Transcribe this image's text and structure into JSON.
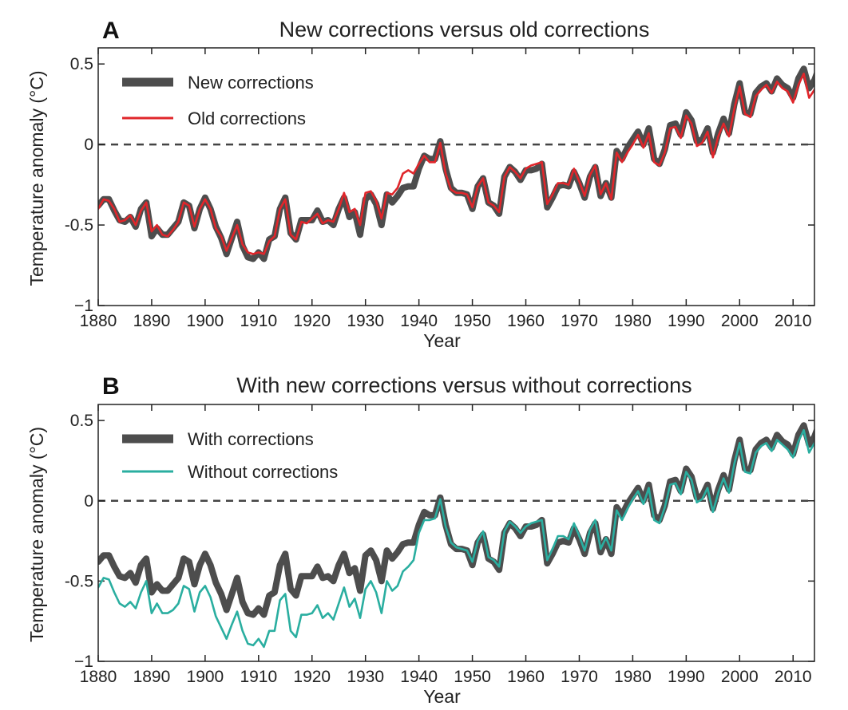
{
  "chart_data": [
    {
      "type": "line",
      "panel": "A",
      "title": "New corrections versus old corrections",
      "xlabel": "Year",
      "ylabel": "Temperature anomaly (°C)",
      "xlim": [
        1880,
        2014
      ],
      "ylim": [
        -1,
        0.6
      ],
      "xticks": [
        1880,
        1890,
        1900,
        1910,
        1920,
        1930,
        1940,
        1950,
        1960,
        1970,
        1980,
        1990,
        2000,
        2010
      ],
      "yticks": [
        -1,
        -0.5,
        0,
        0.5
      ],
      "ytick_labels": [
        "−1",
        "-0.5",
        "0",
        "0.5"
      ],
      "zero_line": true,
      "legend_position": "top-left",
      "x_start": 1880,
      "x_step": 1,
      "series": [
        {
          "name": "New corrections",
          "color": "#4d4d4d",
          "style": "thick",
          "values": [
            -0.38,
            -0.34,
            -0.34,
            -0.41,
            -0.47,
            -0.48,
            -0.45,
            -0.51,
            -0.4,
            -0.36,
            -0.57,
            -0.52,
            -0.56,
            -0.56,
            -0.52,
            -0.48,
            -0.36,
            -0.38,
            -0.52,
            -0.4,
            -0.33,
            -0.4,
            -0.51,
            -0.58,
            -0.68,
            -0.58,
            -0.48,
            -0.63,
            -0.7,
            -0.71,
            -0.67,
            -0.71,
            -0.59,
            -0.57,
            -0.4,
            -0.33,
            -0.55,
            -0.59,
            -0.47,
            -0.47,
            -0.47,
            -0.41,
            -0.48,
            -0.47,
            -0.5,
            -0.4,
            -0.33,
            -0.45,
            -0.42,
            -0.56,
            -0.34,
            -0.31,
            -0.37,
            -0.5,
            -0.31,
            -0.36,
            -0.32,
            -0.27,
            -0.26,
            -0.26,
            -0.15,
            -0.07,
            -0.09,
            -0.09,
            0.02,
            -0.15,
            -0.27,
            -0.3,
            -0.3,
            -0.31,
            -0.4,
            -0.26,
            -0.21,
            -0.36,
            -0.38,
            -0.43,
            -0.2,
            -0.14,
            -0.17,
            -0.22,
            -0.16,
            -0.16,
            -0.15,
            -0.12,
            -0.39,
            -0.33,
            -0.26,
            -0.25,
            -0.26,
            -0.17,
            -0.24,
            -0.33,
            -0.2,
            -0.14,
            -0.32,
            -0.24,
            -0.33,
            -0.04,
            -0.09,
            -0.02,
            0.03,
            0.08,
            0.0,
            0.1,
            -0.09,
            -0.12,
            -0.03,
            0.12,
            0.13,
            0.06,
            0.2,
            0.15,
            0.02,
            0.03,
            0.1,
            -0.05,
            0.07,
            0.16,
            0.07,
            0.25,
            0.38,
            0.2,
            0.19,
            0.32,
            0.36,
            0.38,
            0.33,
            0.41,
            0.37,
            0.35,
            0.29,
            0.41,
            0.47,
            0.35,
            0.4,
            0.49
          ]
        },
        {
          "name": "Old corrections",
          "color": "#e0262b",
          "style": "thin",
          "values": [
            -0.4,
            -0.34,
            -0.35,
            -0.4,
            -0.48,
            -0.47,
            -0.44,
            -0.5,
            -0.41,
            -0.36,
            -0.54,
            -0.5,
            -0.56,
            -0.57,
            -0.53,
            -0.48,
            -0.36,
            -0.38,
            -0.51,
            -0.4,
            -0.34,
            -0.4,
            -0.52,
            -0.57,
            -0.66,
            -0.58,
            -0.5,
            -0.62,
            -0.67,
            -0.68,
            -0.67,
            -0.68,
            -0.6,
            -0.57,
            -0.4,
            -0.34,
            -0.56,
            -0.59,
            -0.48,
            -0.49,
            -0.46,
            -0.43,
            -0.49,
            -0.47,
            -0.48,
            -0.4,
            -0.3,
            -0.42,
            -0.4,
            -0.5,
            -0.3,
            -0.29,
            -0.35,
            -0.46,
            -0.3,
            -0.31,
            -0.27,
            -0.18,
            -0.16,
            -0.18,
            -0.12,
            -0.07,
            -0.11,
            -0.11,
            0.01,
            -0.18,
            -0.28,
            -0.3,
            -0.3,
            -0.31,
            -0.39,
            -0.26,
            -0.21,
            -0.36,
            -0.38,
            -0.42,
            -0.2,
            -0.14,
            -0.17,
            -0.21,
            -0.15,
            -0.13,
            -0.12,
            -0.11,
            -0.37,
            -0.31,
            -0.24,
            -0.24,
            -0.25,
            -0.15,
            -0.23,
            -0.32,
            -0.19,
            -0.13,
            -0.31,
            -0.24,
            -0.34,
            -0.05,
            -0.11,
            -0.05,
            0.0,
            0.06,
            -0.02,
            0.07,
            -0.11,
            -0.13,
            -0.05,
            0.1,
            0.11,
            0.04,
            0.18,
            0.13,
            -0.01,
            0.01,
            0.08,
            -0.08,
            0.05,
            0.13,
            0.05,
            0.22,
            0.36,
            0.19,
            0.17,
            0.3,
            0.34,
            0.37,
            0.32,
            0.39,
            0.35,
            0.33,
            0.26,
            0.37,
            0.44,
            0.29,
            0.34,
            0.42
          ]
        }
      ]
    },
    {
      "type": "line",
      "panel": "B",
      "title": "With new corrections versus without corrections",
      "xlabel": "Year",
      "ylabel": "Temperature anomaly (°C)",
      "xlim": [
        1880,
        2014
      ],
      "ylim": [
        -1,
        0.6
      ],
      "xticks": [
        1880,
        1890,
        1900,
        1910,
        1920,
        1930,
        1940,
        1950,
        1960,
        1970,
        1980,
        1990,
        2000,
        2010
      ],
      "yticks": [
        -1,
        -0.5,
        0,
        0.5
      ],
      "ytick_labels": [
        "−1",
        "-0.5",
        "0",
        "0.5"
      ],
      "zero_line": true,
      "legend_position": "top-left",
      "x_start": 1880,
      "x_step": 1,
      "series": [
        {
          "name": "With corrections",
          "color": "#4d4d4d",
          "style": "thick",
          "values": [
            -0.38,
            -0.34,
            -0.34,
            -0.41,
            -0.47,
            -0.48,
            -0.45,
            -0.51,
            -0.4,
            -0.36,
            -0.57,
            -0.52,
            -0.56,
            -0.56,
            -0.52,
            -0.48,
            -0.36,
            -0.38,
            -0.52,
            -0.4,
            -0.33,
            -0.4,
            -0.51,
            -0.58,
            -0.68,
            -0.58,
            -0.48,
            -0.63,
            -0.7,
            -0.71,
            -0.67,
            -0.71,
            -0.59,
            -0.57,
            -0.4,
            -0.33,
            -0.55,
            -0.59,
            -0.47,
            -0.47,
            -0.47,
            -0.41,
            -0.48,
            -0.47,
            -0.5,
            -0.4,
            -0.33,
            -0.45,
            -0.42,
            -0.56,
            -0.34,
            -0.31,
            -0.37,
            -0.5,
            -0.31,
            -0.36,
            -0.32,
            -0.27,
            -0.26,
            -0.26,
            -0.15,
            -0.07,
            -0.09,
            -0.09,
            0.02,
            -0.15,
            -0.27,
            -0.3,
            -0.3,
            -0.31,
            -0.4,
            -0.26,
            -0.21,
            -0.36,
            -0.38,
            -0.43,
            -0.2,
            -0.14,
            -0.17,
            -0.22,
            -0.16,
            -0.16,
            -0.15,
            -0.12,
            -0.39,
            -0.33,
            -0.26,
            -0.25,
            -0.26,
            -0.17,
            -0.24,
            -0.33,
            -0.2,
            -0.14,
            -0.32,
            -0.24,
            -0.33,
            -0.04,
            -0.09,
            -0.02,
            0.03,
            0.08,
            0.0,
            0.1,
            -0.09,
            -0.12,
            -0.03,
            0.12,
            0.13,
            0.06,
            0.2,
            0.15,
            0.02,
            0.03,
            0.1,
            -0.05,
            0.07,
            0.16,
            0.07,
            0.25,
            0.38,
            0.2,
            0.19,
            0.32,
            0.36,
            0.38,
            0.33,
            0.41,
            0.37,
            0.35,
            0.29,
            0.41,
            0.47,
            0.35,
            0.4,
            0.49
          ]
        },
        {
          "name": "Without corrections",
          "color": "#2aaea0",
          "style": "thin",
          "values": [
            -0.54,
            -0.48,
            -0.49,
            -0.57,
            -0.64,
            -0.66,
            -0.63,
            -0.67,
            -0.57,
            -0.5,
            -0.7,
            -0.64,
            -0.7,
            -0.7,
            -0.68,
            -0.64,
            -0.53,
            -0.55,
            -0.69,
            -0.57,
            -0.53,
            -0.6,
            -0.72,
            -0.79,
            -0.86,
            -0.77,
            -0.69,
            -0.81,
            -0.89,
            -0.9,
            -0.86,
            -0.91,
            -0.81,
            -0.81,
            -0.62,
            -0.58,
            -0.81,
            -0.85,
            -0.71,
            -0.71,
            -0.7,
            -0.65,
            -0.73,
            -0.7,
            -0.74,
            -0.64,
            -0.54,
            -0.66,
            -0.61,
            -0.73,
            -0.55,
            -0.5,
            -0.57,
            -0.7,
            -0.5,
            -0.56,
            -0.53,
            -0.44,
            -0.41,
            -0.37,
            -0.2,
            -0.12,
            -0.12,
            -0.11,
            0.01,
            -0.16,
            -0.26,
            -0.29,
            -0.3,
            -0.31,
            -0.38,
            -0.25,
            -0.19,
            -0.35,
            -0.37,
            -0.41,
            -0.19,
            -0.13,
            -0.16,
            -0.2,
            -0.16,
            -0.14,
            -0.13,
            -0.12,
            -0.37,
            -0.3,
            -0.22,
            -0.22,
            -0.24,
            -0.14,
            -0.22,
            -0.31,
            -0.18,
            -0.12,
            -0.3,
            -0.23,
            -0.31,
            -0.06,
            -0.12,
            -0.05,
            0.01,
            0.06,
            -0.02,
            0.08,
            -0.12,
            -0.14,
            -0.04,
            0.1,
            0.11,
            0.04,
            0.18,
            0.13,
            -0.01,
            0.01,
            0.08,
            -0.07,
            0.05,
            0.14,
            0.05,
            0.23,
            0.36,
            0.18,
            0.17,
            0.3,
            0.34,
            0.36,
            0.31,
            0.38,
            0.35,
            0.32,
            0.27,
            0.37,
            0.44,
            0.3,
            0.36,
            0.43
          ]
        }
      ]
    }
  ]
}
